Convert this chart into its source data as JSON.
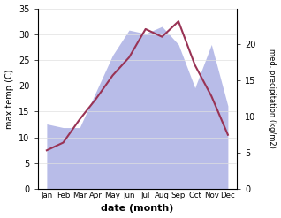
{
  "months": [
    "Jan",
    "Feb",
    "Mar",
    "Apr",
    "May",
    "Jun",
    "Jul",
    "Aug",
    "Sep",
    "Oct",
    "Nov",
    "Dec"
  ],
  "temp": [
    7.5,
    9.0,
    13.5,
    17.5,
    22.0,
    25.5,
    31.0,
    29.5,
    32.5,
    24.0,
    18.0,
    10.5
  ],
  "precip": [
    9.0,
    8.5,
    8.5,
    13.5,
    18.5,
    22.0,
    21.5,
    22.5,
    20.0,
    14.0,
    20.0,
    11.5
  ],
  "temp_color": "#993355",
  "precip_fill_color": "#b8bce8",
  "temp_ylim": [
    0,
    35
  ],
  "precip_ylim": [
    0,
    25
  ],
  "temp_yticks": [
    0,
    5,
    10,
    15,
    20,
    25,
    30,
    35
  ],
  "precip_yticks": [
    0,
    5,
    10,
    15,
    20
  ],
  "xlabel": "date (month)",
  "ylabel_left": "max temp (C)",
  "ylabel_right": "med. precipitation (kg/m2)",
  "background_color": "#ffffff"
}
